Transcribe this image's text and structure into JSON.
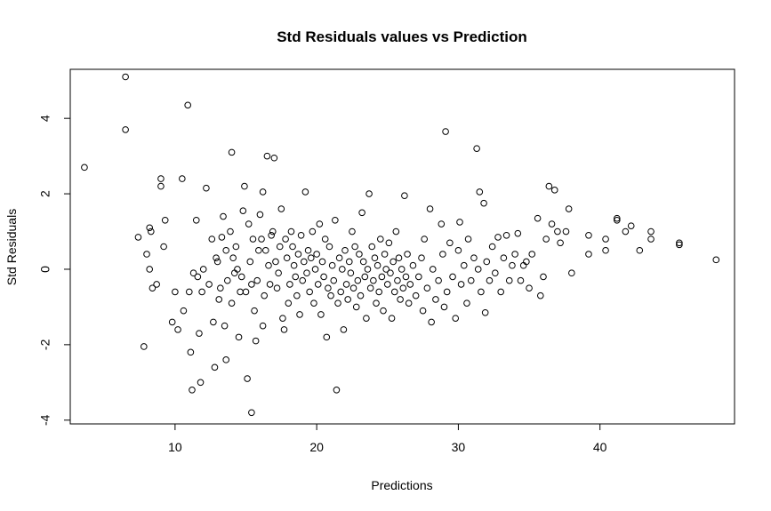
{
  "chart_data": {
    "type": "scatter",
    "title": "Std Residuals values vs Prediction",
    "xlabel": "Predictions",
    "ylabel": "Std Residuals",
    "xlim": [
      2.6,
      49.5
    ],
    "ylim": [
      -4.1,
      5.3
    ],
    "x_ticks": [
      10,
      20,
      30,
      40
    ],
    "x_tick_labels": [
      "10",
      "20",
      "30",
      "40"
    ],
    "y_ticks": [
      -4,
      -2,
      0,
      2,
      4
    ],
    "y_tick_labels": [
      "-4",
      "-2",
      "0",
      "2",
      "4"
    ],
    "grid": false,
    "marker": "open-circle",
    "points": [
      [
        3.6,
        2.7
      ],
      [
        6.5,
        5.1
      ],
      [
        6.5,
        3.7
      ],
      [
        7.8,
        -2.05
      ],
      [
        7.4,
        0.85
      ],
      [
        8.2,
        1.1
      ],
      [
        8.2,
        0.0
      ],
      [
        8.0,
        0.4
      ],
      [
        8.4,
        -0.5
      ],
      [
        8.3,
        1.0
      ],
      [
        8.7,
        -0.4
      ],
      [
        9.0,
        2.4
      ],
      [
        9.0,
        2.2
      ],
      [
        9.2,
        0.6
      ],
      [
        9.3,
        1.3
      ],
      [
        9.8,
        -1.4
      ],
      [
        10.0,
        -0.6
      ],
      [
        10.2,
        -1.6
      ],
      [
        10.5,
        2.4
      ],
      [
        10.6,
        -1.1
      ],
      [
        10.9,
        4.35
      ],
      [
        11.0,
        -0.6
      ],
      [
        11.1,
        -2.2
      ],
      [
        11.2,
        -3.2
      ],
      [
        11.3,
        -0.1
      ],
      [
        11.5,
        1.3
      ],
      [
        11.6,
        -0.2
      ],
      [
        11.7,
        -1.7
      ],
      [
        11.8,
        -3.0
      ],
      [
        11.9,
        -0.6
      ],
      [
        12.0,
        0.0
      ],
      [
        12.2,
        2.15
      ],
      [
        12.4,
        -0.4
      ],
      [
        12.6,
        0.8
      ],
      [
        12.7,
        -1.4
      ],
      [
        12.8,
        -2.6
      ],
      [
        12.9,
        0.3
      ],
      [
        13.0,
        0.2
      ],
      [
        13.1,
        -0.8
      ],
      [
        13.2,
        -0.5
      ],
      [
        13.3,
        0.85
      ],
      [
        13.4,
        1.4
      ],
      [
        13.5,
        -1.5
      ],
      [
        13.6,
        0.5
      ],
      [
        13.6,
        -2.4
      ],
      [
        13.7,
        -0.3
      ],
      [
        13.9,
        1.0
      ],
      [
        14.0,
        3.1
      ],
      [
        14.0,
        -0.9
      ],
      [
        14.1,
        0.3
      ],
      [
        14.2,
        -0.1
      ],
      [
        14.3,
        0.6
      ],
      [
        14.4,
        0.0
      ],
      [
        14.5,
        -1.8
      ],
      [
        14.6,
        -0.6
      ],
      [
        14.7,
        -0.2
      ],
      [
        14.8,
        1.55
      ],
      [
        14.9,
        2.2
      ],
      [
        15.0,
        -0.6
      ],
      [
        15.1,
        -2.9
      ],
      [
        15.2,
        1.2
      ],
      [
        15.3,
        0.2
      ],
      [
        15.4,
        -0.4
      ],
      [
        15.4,
        -3.8
      ],
      [
        15.5,
        0.8
      ],
      [
        15.6,
        -1.1
      ],
      [
        15.7,
        -1.9
      ],
      [
        15.8,
        -0.3
      ],
      [
        15.9,
        0.5
      ],
      [
        16.0,
        1.45
      ],
      [
        16.1,
        0.8
      ],
      [
        16.2,
        -1.5
      ],
      [
        16.2,
        2.05
      ],
      [
        16.3,
        -0.7
      ],
      [
        16.4,
        0.5
      ],
      [
        16.5,
        3.0
      ],
      [
        16.6,
        0.1
      ],
      [
        16.7,
        -0.4
      ],
      [
        16.8,
        0.9
      ],
      [
        16.9,
        1.0
      ],
      [
        17.0,
        2.95
      ],
      [
        17.1,
        0.2
      ],
      [
        17.2,
        -0.5
      ],
      [
        17.3,
        -0.1
      ],
      [
        17.4,
        0.6
      ],
      [
        17.5,
        1.6
      ],
      [
        17.6,
        -1.3
      ],
      [
        17.7,
        -1.6
      ],
      [
        17.8,
        0.8
      ],
      [
        17.9,
        0.3
      ],
      [
        18.0,
        -0.9
      ],
      [
        18.1,
        -0.4
      ],
      [
        18.2,
        1.0
      ],
      [
        18.3,
        0.6
      ],
      [
        18.4,
        0.1
      ],
      [
        18.5,
        -0.2
      ],
      [
        18.6,
        -0.7
      ],
      [
        18.7,
        0.4
      ],
      [
        18.8,
        -1.2
      ],
      [
        18.9,
        0.9
      ],
      [
        19.0,
        -0.3
      ],
      [
        19.1,
        0.2
      ],
      [
        19.2,
        2.05
      ],
      [
        19.3,
        -0.1
      ],
      [
        19.4,
        0.5
      ],
      [
        19.5,
        -0.6
      ],
      [
        19.6,
        0.3
      ],
      [
        19.7,
        1.0
      ],
      [
        19.8,
        -0.9
      ],
      [
        19.9,
        0.0
      ],
      [
        20.0,
        0.4
      ],
      [
        20.1,
        -0.4
      ],
      [
        20.2,
        1.2
      ],
      [
        20.3,
        -1.2
      ],
      [
        20.4,
        0.2
      ],
      [
        20.5,
        -0.2
      ],
      [
        20.6,
        0.8
      ],
      [
        20.7,
        -1.8
      ],
      [
        20.8,
        -0.5
      ],
      [
        20.9,
        0.6
      ],
      [
        21.0,
        -0.7
      ],
      [
        21.1,
        0.1
      ],
      [
        21.2,
        -0.3
      ],
      [
        21.3,
        1.3
      ],
      [
        21.4,
        -3.2
      ],
      [
        21.5,
        -0.9
      ],
      [
        21.6,
        0.3
      ],
      [
        21.7,
        -0.6
      ],
      [
        21.8,
        0.0
      ],
      [
        21.9,
        -1.6
      ],
      [
        22.0,
        0.5
      ],
      [
        22.1,
        -0.4
      ],
      [
        22.2,
        -0.8
      ],
      [
        22.3,
        0.2
      ],
      [
        22.4,
        -0.1
      ],
      [
        22.5,
        1.0
      ],
      [
        22.6,
        -0.5
      ],
      [
        22.7,
        0.6
      ],
      [
        22.8,
        -1.0
      ],
      [
        22.9,
        -0.3
      ],
      [
        23.0,
        0.4
      ],
      [
        23.1,
        -0.7
      ],
      [
        23.2,
        1.5
      ],
      [
        23.3,
        0.2
      ],
      [
        23.4,
        -0.2
      ],
      [
        23.5,
        -1.3
      ],
      [
        23.6,
        0.0
      ],
      [
        23.7,
        2.0
      ],
      [
        23.8,
        -0.5
      ],
      [
        23.9,
        0.6
      ],
      [
        24.0,
        -0.3
      ],
      [
        24.1,
        0.3
      ],
      [
        24.2,
        -0.9
      ],
      [
        24.3,
        0.1
      ],
      [
        24.4,
        -0.6
      ],
      [
        24.5,
        0.8
      ],
      [
        24.6,
        -0.2
      ],
      [
        24.7,
        -1.1
      ],
      [
        24.8,
        0.4
      ],
      [
        24.9,
        0.0
      ],
      [
        25.0,
        -0.4
      ],
      [
        25.1,
        0.7
      ],
      [
        25.2,
        -0.1
      ],
      [
        25.3,
        -1.3
      ],
      [
        25.4,
        0.2
      ],
      [
        25.5,
        -0.6
      ],
      [
        25.6,
        1.0
      ],
      [
        25.7,
        -0.3
      ],
      [
        25.8,
        0.3
      ],
      [
        25.9,
        -0.8
      ],
      [
        26.0,
        0.0
      ],
      [
        26.1,
        -0.5
      ],
      [
        26.2,
        1.95
      ],
      [
        26.3,
        -0.2
      ],
      [
        26.4,
        0.4
      ],
      [
        26.5,
        -0.9
      ],
      [
        26.6,
        -0.4
      ],
      [
        26.8,
        0.1
      ],
      [
        27.0,
        -0.7
      ],
      [
        27.2,
        -0.2
      ],
      [
        27.4,
        0.3
      ],
      [
        27.5,
        -1.1
      ],
      [
        27.6,
        0.8
      ],
      [
        27.8,
        -0.5
      ],
      [
        28.0,
        1.6
      ],
      [
        28.1,
        -1.4
      ],
      [
        28.2,
        0.0
      ],
      [
        28.4,
        -0.8
      ],
      [
        28.6,
        -0.3
      ],
      [
        28.8,
        1.2
      ],
      [
        28.9,
        0.4
      ],
      [
        29.0,
        -1.0
      ],
      [
        29.1,
        3.65
      ],
      [
        29.2,
        -0.6
      ],
      [
        29.4,
        0.7
      ],
      [
        29.6,
        -0.2
      ],
      [
        29.8,
        -1.3
      ],
      [
        30.0,
        0.5
      ],
      [
        30.1,
        1.25
      ],
      [
        30.2,
        -0.4
      ],
      [
        30.4,
        0.1
      ],
      [
        30.6,
        -0.9
      ],
      [
        30.7,
        0.8
      ],
      [
        30.9,
        -0.3
      ],
      [
        31.1,
        0.3
      ],
      [
        31.3,
        3.2
      ],
      [
        31.4,
        0.0
      ],
      [
        31.5,
        2.05
      ],
      [
        31.6,
        -0.6
      ],
      [
        31.8,
        1.75
      ],
      [
        31.9,
        -1.15
      ],
      [
        32.0,
        0.2
      ],
      [
        32.2,
        -0.3
      ],
      [
        32.4,
        0.6
      ],
      [
        32.6,
        -0.1
      ],
      [
        32.8,
        0.85
      ],
      [
        33.0,
        -0.6
      ],
      [
        33.2,
        0.3
      ],
      [
        33.4,
        0.9
      ],
      [
        33.6,
        -0.3
      ],
      [
        33.8,
        0.1
      ],
      [
        34.0,
        0.4
      ],
      [
        34.2,
        0.95
      ],
      [
        34.4,
        -0.3
      ],
      [
        34.6,
        0.1
      ],
      [
        34.8,
        0.2
      ],
      [
        35.0,
        -0.5
      ],
      [
        35.2,
        0.4
      ],
      [
        35.6,
        1.35
      ],
      [
        35.8,
        -0.7
      ],
      [
        36.0,
        -0.2
      ],
      [
        36.2,
        0.8
      ],
      [
        36.4,
        2.2
      ],
      [
        36.6,
        1.2
      ],
      [
        36.8,
        2.1
      ],
      [
        37.0,
        1.0
      ],
      [
        37.2,
        0.7
      ],
      [
        37.6,
        1.0
      ],
      [
        37.8,
        1.6
      ],
      [
        38.0,
        -0.1
      ],
      [
        39.2,
        0.9
      ],
      [
        39.2,
        0.4
      ],
      [
        40.4,
        0.8
      ],
      [
        40.4,
        0.5
      ],
      [
        41.2,
        1.35
      ],
      [
        41.2,
        1.3
      ],
      [
        41.8,
        1.0
      ],
      [
        42.2,
        1.15
      ],
      [
        42.8,
        0.5
      ],
      [
        43.6,
        1.0
      ],
      [
        43.6,
        0.8
      ],
      [
        45.6,
        0.7
      ],
      [
        45.6,
        0.65
      ],
      [
        48.2,
        0.25
      ]
    ]
  }
}
